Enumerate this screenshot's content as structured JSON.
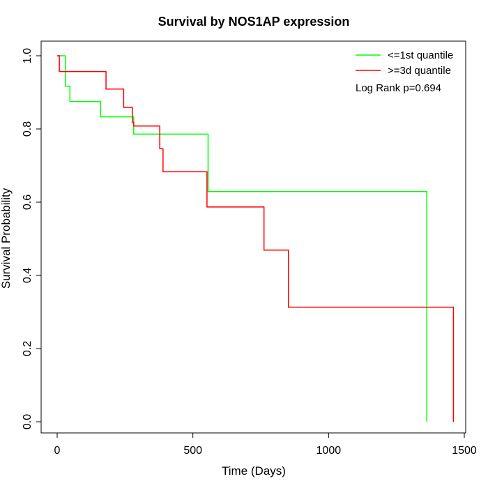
{
  "chart_data": {
    "type": "line",
    "title": "Survival by NOS1AP expression",
    "xlabel": "Time (Days)",
    "ylabel": "Survival Probability",
    "xlim": [
      0,
      1500
    ],
    "ylim": [
      0,
      1
    ],
    "x_ticks": [
      0,
      500,
      1000,
      1500
    ],
    "y_ticks": [
      0.0,
      0.2,
      0.4,
      0.6,
      0.8,
      1.0
    ],
    "x_tick_labels": [
      "0",
      "500",
      "1000",
      "1500"
    ],
    "y_tick_labels": [
      "0.0",
      "0.2",
      "0.4",
      "0.6",
      "0.8",
      "1.0"
    ],
    "grid": false,
    "legend_position": "top-right",
    "annotation": "Log Rank p=0.694",
    "series": [
      {
        "name": "<=1st quantile",
        "color": "#00ff00",
        "step": true,
        "x": [
          0,
          22,
          30,
          47,
          160,
          282,
          556,
          1362,
          1362
        ],
        "y": [
          1.0,
          1.0,
          0.917,
          0.875,
          0.833,
          0.786,
          0.629,
          0.629,
          0.0
        ]
      },
      {
        "name": ">=3d quantile",
        "color": "#ff0000",
        "step": true,
        "x": [
          0,
          8,
          180,
          245,
          277,
          282,
          378,
          390,
          552,
          762,
          852,
          1460,
          1460
        ],
        "y": [
          1.0,
          0.957,
          0.909,
          0.859,
          0.818,
          0.808,
          0.746,
          0.683,
          0.587,
          0.469,
          0.313,
          0.313,
          0.0
        ]
      }
    ]
  }
}
